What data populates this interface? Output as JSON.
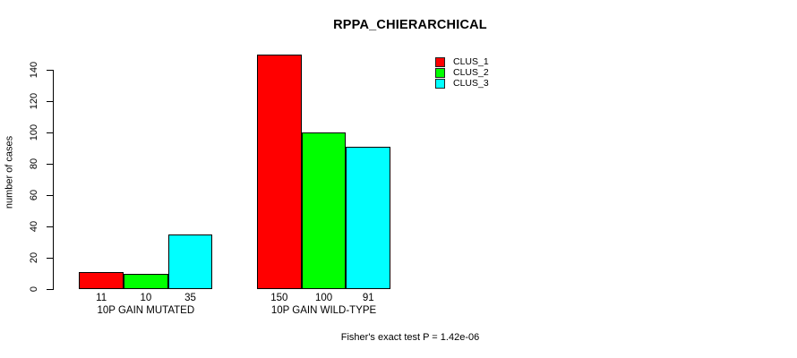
{
  "title": "RPPA_CHIERARCHICAL",
  "annotation": "Fisher's exact test P = 1.42e-06",
  "chart_data": {
    "type": "bar",
    "title": "RPPA_CHIERARCHICAL",
    "xlabel": "",
    "ylabel": "number of cases",
    "categories": [
      "10P GAIN MUTATED",
      "10P GAIN WILD-TYPE"
    ],
    "series": [
      {
        "name": "CLUS_1",
        "color": "#FF0000",
        "values": [
          11,
          150
        ]
      },
      {
        "name": "CLUS_2",
        "color": "#00FF00",
        "values": [
          10,
          100
        ]
      },
      {
        "name": "CLUS_3",
        "color": "#00FFFF",
        "values": [
          35,
          91
        ]
      }
    ],
    "bar_value_labels": [
      [
        11,
        10,
        35
      ],
      [
        150,
        100,
        91
      ]
    ],
    "yticks": [
      0,
      20,
      40,
      60,
      80,
      100,
      120,
      140
    ],
    "ylim": [
      0,
      140
    ],
    "grid": false,
    "legend_position": "top-right",
    "bar_border_color": "#000000",
    "annotation": "Fisher's exact test P = 1.42e-06"
  }
}
